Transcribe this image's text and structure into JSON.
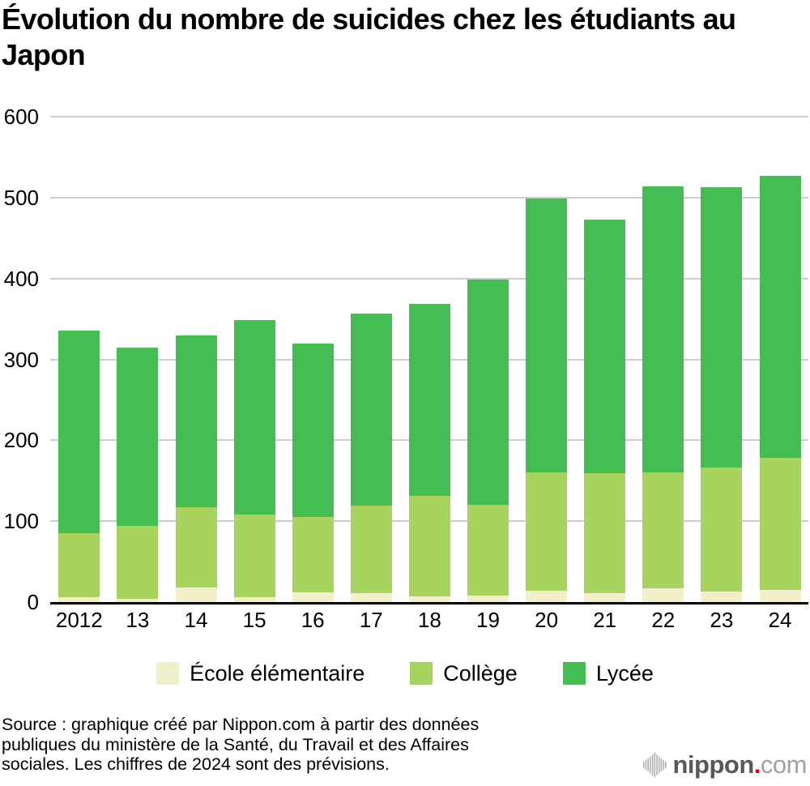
{
  "title": "Évolution du nombre de suicides chez les étudiants au Japon",
  "chart_data": {
    "type": "bar",
    "stacked": true,
    "categories": [
      "2012",
      "13",
      "14",
      "15",
      "16",
      "17",
      "18",
      "19",
      "20",
      "21",
      "22",
      "23",
      "24"
    ],
    "series": [
      {
        "name": "École élémentaire",
        "color": "#F2F0C8",
        "values": [
          6,
          4,
          18,
          6,
          12,
          11,
          7,
          8,
          14,
          11,
          17,
          13,
          15
        ]
      },
      {
        "name": "Collège",
        "color": "#A7D45F",
        "values": [
          79,
          90,
          99,
          102,
          93,
          108,
          124,
          112,
          146,
          148,
          143,
          153,
          163
        ]
      },
      {
        "name": "Lycée",
        "color": "#46BC55",
        "values": [
          251,
          221,
          213,
          241,
          215,
          238,
          238,
          279,
          339,
          314,
          354,
          347,
          349
        ]
      }
    ],
    "title": "Évolution du nombre de suicides chez les étudiants au Japon",
    "xlabel": "",
    "ylabel": "",
    "ylim": [
      0,
      600
    ],
    "yticks": [
      0,
      100,
      200,
      300,
      400,
      500,
      600
    ],
    "grid": true,
    "gridline_color": "#CCCCCC",
    "axis_color": "#000000",
    "legend_position": "bottom"
  },
  "source": {
    "lines": [
      "Source : graphique créé par Nippon.com à partir des données",
      "publiques du ministère de la Santé, du Travail et des Affaires",
      "sociales. Les chiffres de 2024 sont des prévisions."
    ]
  },
  "logo": {
    "wordmark": "nippon",
    "dot": ".",
    "tld": "com",
    "colors": {
      "wordmark": "#595757",
      "dot": "#E60012",
      "tld": "#9FA0A0",
      "icon": "#B2B2B2"
    }
  }
}
